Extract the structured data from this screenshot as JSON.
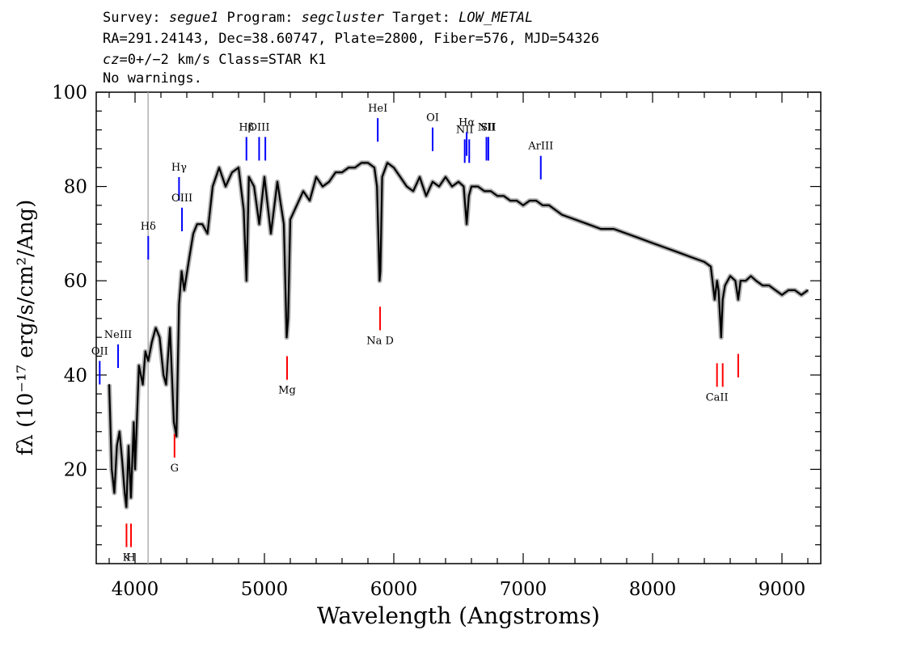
{
  "header": {
    "line1": {
      "p1": "Survey: ",
      "survey": "segue1",
      "p2": " Program: ",
      "program": "segcluster",
      "p3": " Target: ",
      "target": "LOW_METAL"
    },
    "line2": "RA=291.24143, Dec=38.60747, Plate=2800, Fiber=576, MJD=54326",
    "line3": {
      "cz": "cz",
      "rest": "=0+/−2 km/s Class=STAR K1"
    },
    "line4": "No warnings."
  },
  "chart_data": {
    "type": "line",
    "xlabel": "Wavelength (Angstroms)",
    "ylabel": "fλ (10⁻¹⁷ erg/s/cm²/Ang)",
    "xlim": [
      3700,
      9300
    ],
    "ylim": [
      0,
      100
    ],
    "x_ticks": [
      4000,
      5000,
      6000,
      7000,
      8000,
      9000
    ],
    "y_ticks": [
      20,
      40,
      60,
      80,
      100
    ],
    "grid": false,
    "colors": {
      "spectrum": "#000000",
      "error_band": "#b0b0b0",
      "emission": "#0000ff",
      "absorption": "#ff0000",
      "marker_line": "#b0b0b0"
    },
    "vertical_reference_line_x": 4101,
    "spectrum": {
      "x": [
        3800,
        3820,
        3840,
        3860,
        3880,
        3900,
        3920,
        3933,
        3950,
        3968,
        3990,
        4000,
        4030,
        4060,
        4080,
        4102,
        4130,
        4160,
        4190,
        4220,
        4240,
        4270,
        4300,
        4320,
        4340,
        4360,
        4380,
        4420,
        4450,
        4480,
        4520,
        4560,
        4600,
        4650,
        4700,
        4750,
        4800,
        4840,
        4861,
        4880,
        4920,
        4960,
        5000,
        5050,
        5100,
        5150,
        5172,
        5183,
        5200,
        5250,
        5300,
        5350,
        5400,
        5450,
        5500,
        5550,
        5600,
        5650,
        5700,
        5750,
        5800,
        5850,
        5870,
        5890,
        5896,
        5910,
        5950,
        6000,
        6050,
        6100,
        6150,
        6200,
        6250,
        6300,
        6350,
        6400,
        6450,
        6500,
        6540,
        6563,
        6580,
        6600,
        6650,
        6700,
        6750,
        6800,
        6850,
        6900,
        6950,
        7000,
        7050,
        7100,
        7150,
        7200,
        7300,
        7400,
        7500,
        7600,
        7700,
        7800,
        7900,
        8000,
        8100,
        8200,
        8300,
        8400,
        8450,
        8480,
        8498,
        8510,
        8530,
        8542,
        8560,
        8600,
        8640,
        8662,
        8680,
        8720,
        8760,
        8800,
        8850,
        8900,
        8950,
        9000,
        9050,
        9100,
        9150,
        9200
      ],
      "y": [
        38,
        20,
        15,
        25,
        28,
        22,
        15,
        12,
        25,
        14,
        30,
        20,
        42,
        38,
        45,
        43,
        47,
        50,
        48,
        40,
        38,
        50,
        30,
        27,
        55,
        62,
        58,
        65,
        70,
        72,
        72,
        70,
        80,
        84,
        80,
        83,
        84,
        75,
        60,
        82,
        80,
        72,
        82,
        70,
        81,
        72,
        48,
        52,
        73,
        76,
        79,
        77,
        82,
        80,
        81,
        83,
        83,
        84,
        84,
        85,
        85,
        84,
        80,
        60,
        62,
        82,
        85,
        84,
        82,
        80,
        79,
        82,
        78,
        81,
        80,
        82,
        80,
        81,
        80,
        72,
        78,
        80,
        80,
        79,
        79,
        78,
        78,
        77,
        77,
        76,
        77,
        77,
        76,
        76,
        74,
        73,
        72,
        71,
        71,
        70,
        69,
        68,
        67,
        66,
        65,
        64,
        63,
        56,
        60,
        58,
        48,
        56,
        59,
        61,
        60,
        56,
        60,
        60,
        61,
        60,
        59,
        59,
        58,
        57,
        58,
        58,
        57,
        58
      ]
    },
    "emission_lines": [
      {
        "label": "OII",
        "x": 3727,
        "y_low": 38,
        "y_high": 43
      },
      {
        "label": "NeIII",
        "x": 3869,
        "y_low": 41.5,
        "y_high": 46.5
      },
      {
        "label": "Hδ",
        "x": 4102,
        "y_low": 64.5,
        "y_high": 69.5
      },
      {
        "label": "Hγ",
        "x": 4340,
        "y_low": 77,
        "y_high": 82
      },
      {
        "label": "OIII",
        "x": 4363,
        "y_low": 70.5,
        "y_high": 75.5
      },
      {
        "label": "Hβ",
        "x": 4861,
        "y_low": 85.5,
        "y_high": 90.5
      },
      {
        "label": "OIII",
        "x": 4959,
        "y_low": 85.5,
        "y_high": 90.5
      },
      {
        "label": "",
        "x": 5007,
        "y_low": 85.5,
        "y_high": 90.5
      },
      {
        "label": "HeI",
        "x": 5876,
        "y_low": 89.5,
        "y_high": 94.5
      },
      {
        "label": "OI",
        "x": 6300,
        "y_low": 87.5,
        "y_high": 92.5
      },
      {
        "label": "NII",
        "x": 6548,
        "y_low": 85,
        "y_high": 90
      },
      {
        "label": "Hα",
        "x": 6563,
        "y_low": 86.5,
        "y_high": 91.5
      },
      {
        "label": "",
        "x": 6583,
        "y_low": 85,
        "y_high": 90
      },
      {
        "label": "NII",
        "x": 6716,
        "y_low": 85.5,
        "y_high": 90.5
      },
      {
        "label": "SII",
        "x": 6731,
        "y_low": 85.5,
        "y_high": 90.5
      },
      {
        "label": "ArIII",
        "x": 7136,
        "y_low": 81.5,
        "y_high": 86.5
      }
    ],
    "absorption_lines": [
      {
        "label": "K",
        "x": 3934,
        "y_low": 3.5,
        "y_high": 8.5
      },
      {
        "label": "H",
        "x": 3969,
        "y_low": 3.5,
        "y_high": 8.5
      },
      {
        "label": "G",
        "x": 4305,
        "y_low": 22.5,
        "y_high": 27.5
      },
      {
        "label": "Mg",
        "x": 5175,
        "y_low": 39,
        "y_high": 44
      },
      {
        "label": "Na D",
        "x": 5894,
        "y_low": 49.5,
        "y_high": 54.5
      },
      {
        "label": "CaII",
        "x": 8498,
        "y_low": 37.5,
        "y_high": 42.5
      },
      {
        "label": "",
        "x": 8542,
        "y_low": 37.5,
        "y_high": 42.5
      },
      {
        "label": "",
        "x": 8662,
        "y_low": 39.5,
        "y_high": 44.5
      }
    ]
  }
}
